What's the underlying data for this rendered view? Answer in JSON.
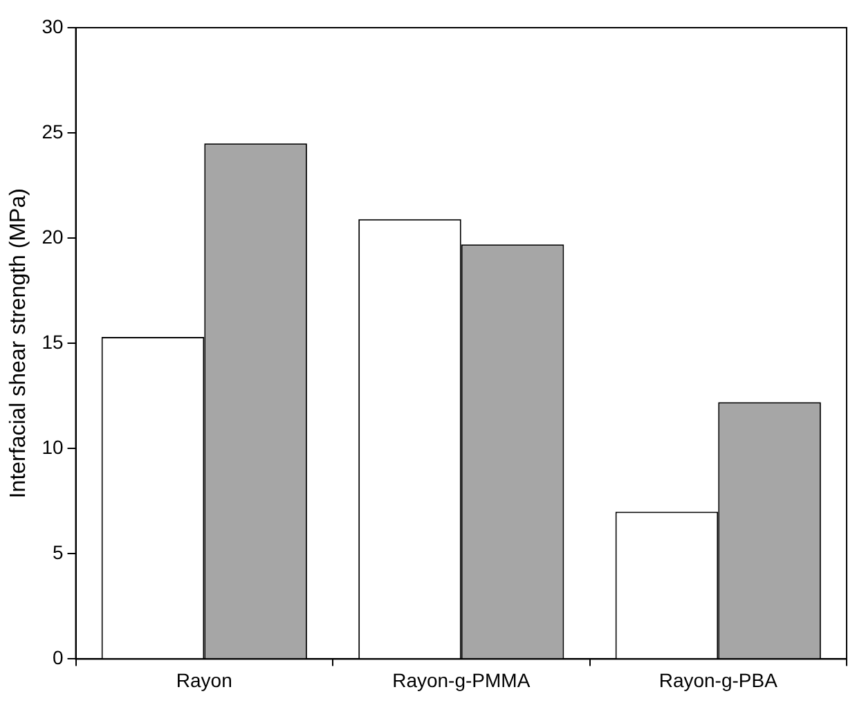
{
  "chart_data": {
    "type": "bar",
    "ylabel": "Interfacial shear strength (MPa)",
    "categories": [
      "Rayon",
      "Rayon-g-PMMA",
      "Rayon-g-PBA"
    ],
    "series": [
      {
        "color": "#ffffff",
        "values": [
          15.3,
          20.9,
          7.0
        ]
      },
      {
        "color": "#a6a6a6",
        "values": [
          24.5,
          19.7,
          12.2
        ]
      }
    ],
    "ylim": [
      0,
      30
    ],
    "yticks": [
      0,
      5,
      10,
      15,
      20,
      25,
      30
    ],
    "grid": false,
    "legend": false
  }
}
